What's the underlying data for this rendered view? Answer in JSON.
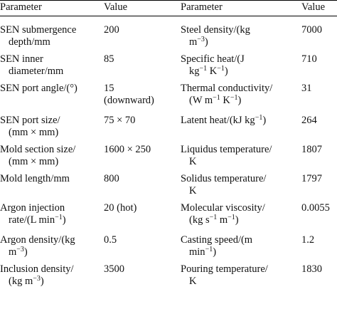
{
  "headers": [
    "Parameter",
    "Value",
    "Parameter",
    "Value"
  ],
  "rows": [
    {
      "p1": [
        "SEN submergence",
        "depth/mm"
      ],
      "v1": [
        "200"
      ],
      "p2": [
        "Steel density/(kg",
        "m<sup>−3</sup>)"
      ],
      "v2": [
        "7000"
      ]
    },
    {
      "p1": [
        "SEN inner",
        "diameter/mm"
      ],
      "v1": [
        "85"
      ],
      "p2": [
        "Specific heat/(J",
        "kg<sup>−1</sup> K<sup>−1</sup>)"
      ],
      "v2": [
        "710"
      ]
    },
    {
      "p1": [
        "SEN port angle/(°)"
      ],
      "v1": [
        "15",
        "(downward)"
      ],
      "p2": [
        "Thermal conductivity/",
        "(W m<sup>−1</sup> K<sup>−1</sup>)"
      ],
      "v2": [
        "31"
      ]
    },
    {
      "p1": [
        "SEN port size/",
        "(mm × mm)"
      ],
      "v1": [
        "75 × 70"
      ],
      "p2": [
        "Latent heat/(kJ kg<sup>−1</sup>)"
      ],
      "v2": [
        "264"
      ]
    },
    {
      "p1": [
        "Mold section size/",
        "(mm × mm)"
      ],
      "v1": [
        "1600 × 250"
      ],
      "p2": [
        "Liquidus temperature/",
        "K"
      ],
      "v2": [
        "1807"
      ]
    },
    {
      "p1": [
        "Mold length/mm"
      ],
      "v1": [
        "800"
      ],
      "p2": [
        "Solidus temperature/",
        "K"
      ],
      "v2": [
        "1797"
      ]
    },
    {
      "p1": [
        "Argon injection",
        "rate/(L min<sup>−1</sup>)"
      ],
      "v1": [
        "20 (hot)"
      ],
      "p2": [
        "Molecular viscosity/",
        "(kg s<sup>−1</sup> m<sup>−1</sup>)"
      ],
      "v2": [
        "0.0055"
      ]
    },
    {
      "p1": [
        "Argon density/(kg",
        "m<sup>−3</sup>)"
      ],
      "v1": [
        "0.5"
      ],
      "p2": [
        "Casting speed/(m",
        "min<sup>−1</sup>)"
      ],
      "v2": [
        "1.2"
      ]
    },
    {
      "p1": [
        "Inclusion density/",
        "(kg m<sup>−3</sup>)"
      ],
      "v1": [
        "3500"
      ],
      "p2": [
        "Pouring temperature/",
        "K"
      ],
      "v2": [
        "1830"
      ]
    }
  ]
}
